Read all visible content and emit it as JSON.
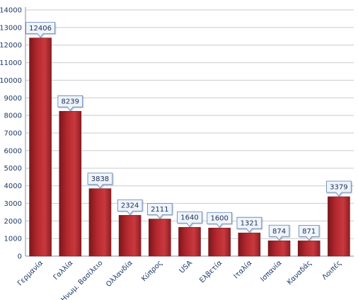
{
  "chart_data": {
    "type": "bar",
    "categories": [
      "Γερμανία",
      "Γαλλία",
      "Ηνωμ. Βασίλειο",
      "Ολλανδία",
      "Κύπρος",
      "USA",
      "Ελβετία",
      "Ιταλία",
      "Ισπανία",
      "Καναδάς",
      "Λοιπές"
    ],
    "values": [
      12406,
      8239,
      3838,
      2324,
      2111,
      1640,
      1600,
      1321,
      874,
      871,
      3379
    ],
    "data_labels": [
      "12406",
      "8239",
      "3838",
      "2324",
      "2111",
      "1640",
      "1600",
      "1321",
      "874",
      "871",
      "3379"
    ],
    "y_ticks": [
      "0",
      "1000",
      "2000",
      "3000",
      "4000",
      "5000",
      "6000",
      "7000",
      "8000",
      "9000",
      "10000",
      "11000",
      "12000",
      "13000",
      "14000"
    ],
    "ylim": [
      0,
      14000
    ],
    "grid": true,
    "legend": "none",
    "colors": {
      "bar": "#b02a30",
      "bar_dark": "#7a171b",
      "grid": "#c9cbd0",
      "text": "#1f3a68"
    }
  }
}
